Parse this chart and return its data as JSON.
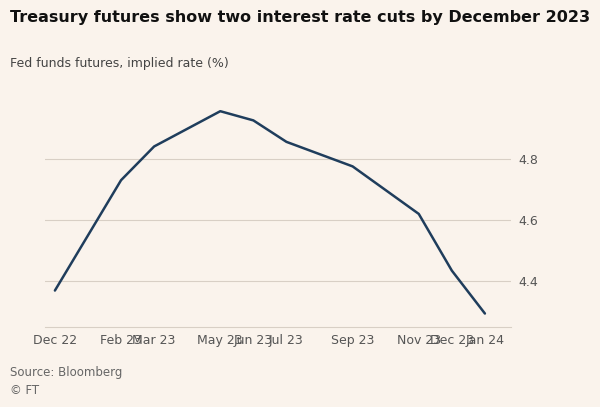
{
  "title": "Treasury futures show two interest rate cuts by December 2023",
  "subtitle": "Fed funds futures, implied rate (%)",
  "source": "Source: Bloomberg\n© FT",
  "background_color": "#faf3ec",
  "line_color": "#1f3d5c",
  "x_labels": [
    "Dec 22",
    "Feb 23",
    "Mar 23",
    "May 23",
    "Jun 23",
    "Jul 23",
    "Sep 23",
    "Nov 23",
    "Dec 23",
    "Jan 24"
  ],
  "x_positions": [
    0,
    2,
    3,
    5,
    6,
    7,
    9,
    11,
    12,
    13
  ],
  "y_values": [
    4.37,
    4.73,
    4.84,
    4.955,
    4.925,
    4.855,
    4.775,
    4.62,
    4.435,
    4.295
  ],
  "ylim": [
    4.25,
    5.02
  ],
  "xlim": [
    -0.3,
    13.8
  ],
  "yticks": [
    4.4,
    4.6,
    4.8
  ],
  "ytick_labels": [
    "4.4",
    "4.6",
    "4.8"
  ],
  "grid_color": "#d8cfc5",
  "title_fontsize": 11.5,
  "subtitle_fontsize": 9,
  "source_fontsize": 8.5,
  "tick_fontsize": 9,
  "line_width": 1.8
}
